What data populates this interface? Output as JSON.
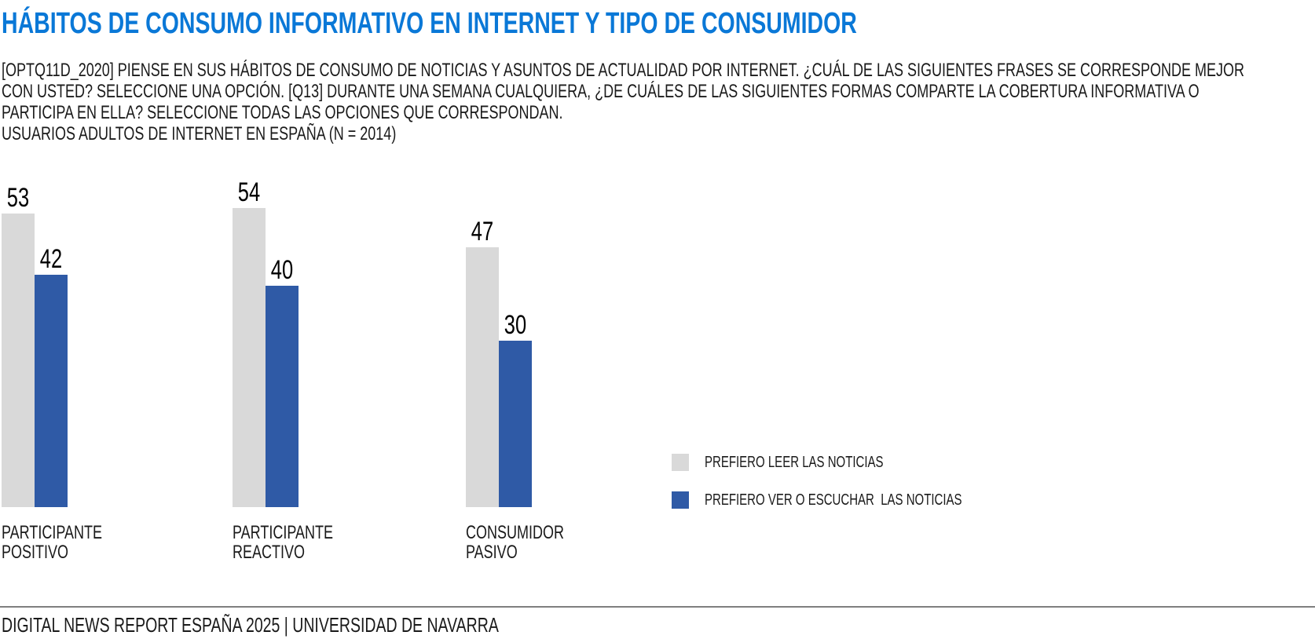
{
  "header": {
    "title": "HÁBITOS DE CONSUMO INFORMATIVO EN INTERNET Y TIPO DE CONSUMIDOR",
    "title_color": "#0A78D7",
    "question_lines": [
      "[OPTQ11D_2020] PIENSE EN SUS HÁBITOS DE CONSUMO DE NOTICIAS Y ASUNTOS DE ACTUALIDAD POR INTERNET. ¿CUÁL DE LAS SIGUIENTES FRASES SE CORRESPONDE MEJOR",
      "CON USTED? SELECCIONE UNA OPCIÓN. [Q13] DURANTE UNA SEMANA CUALQUIERA, ¿DE CUÁLES DE LAS SIGUIENTES FORMAS COMPARTE LA COBERTURA INFORMATIVA O",
      "PARTICIPA EN ELLA? SELECCIONE TODAS LAS OPCIONES QUE CORRESPONDAN."
    ],
    "base_line": "USUARIOS ADULTOS DE INTERNET EN ESPAÑA (N = 2014)"
  },
  "chart_data": {
    "type": "bar",
    "categories": [
      "PARTICIPANTE POSITIVO",
      "PARTICIPANTE REACTIVO",
      "CONSUMIDOR PASIVO"
    ],
    "series": [
      {
        "name": "PREFIERO LEER LAS NOTICIAS",
        "color": "#D9D9D9",
        "values": [
          53,
          54,
          47
        ]
      },
      {
        "name": "PREFIERO VER O ESCUCHAR  LAS NOTICIAS",
        "color": "#2F5AA6",
        "values": [
          42,
          40,
          30
        ]
      }
    ],
    "value_labels": true,
    "axis": "hidden",
    "grid": false,
    "legend_position": "right"
  },
  "footer": {
    "text": "DIGITAL NEWS REPORT ESPAÑA 2025 | UNIVERSIDAD DE NAVARRA",
    "rule_color": "#7F7F7F"
  }
}
